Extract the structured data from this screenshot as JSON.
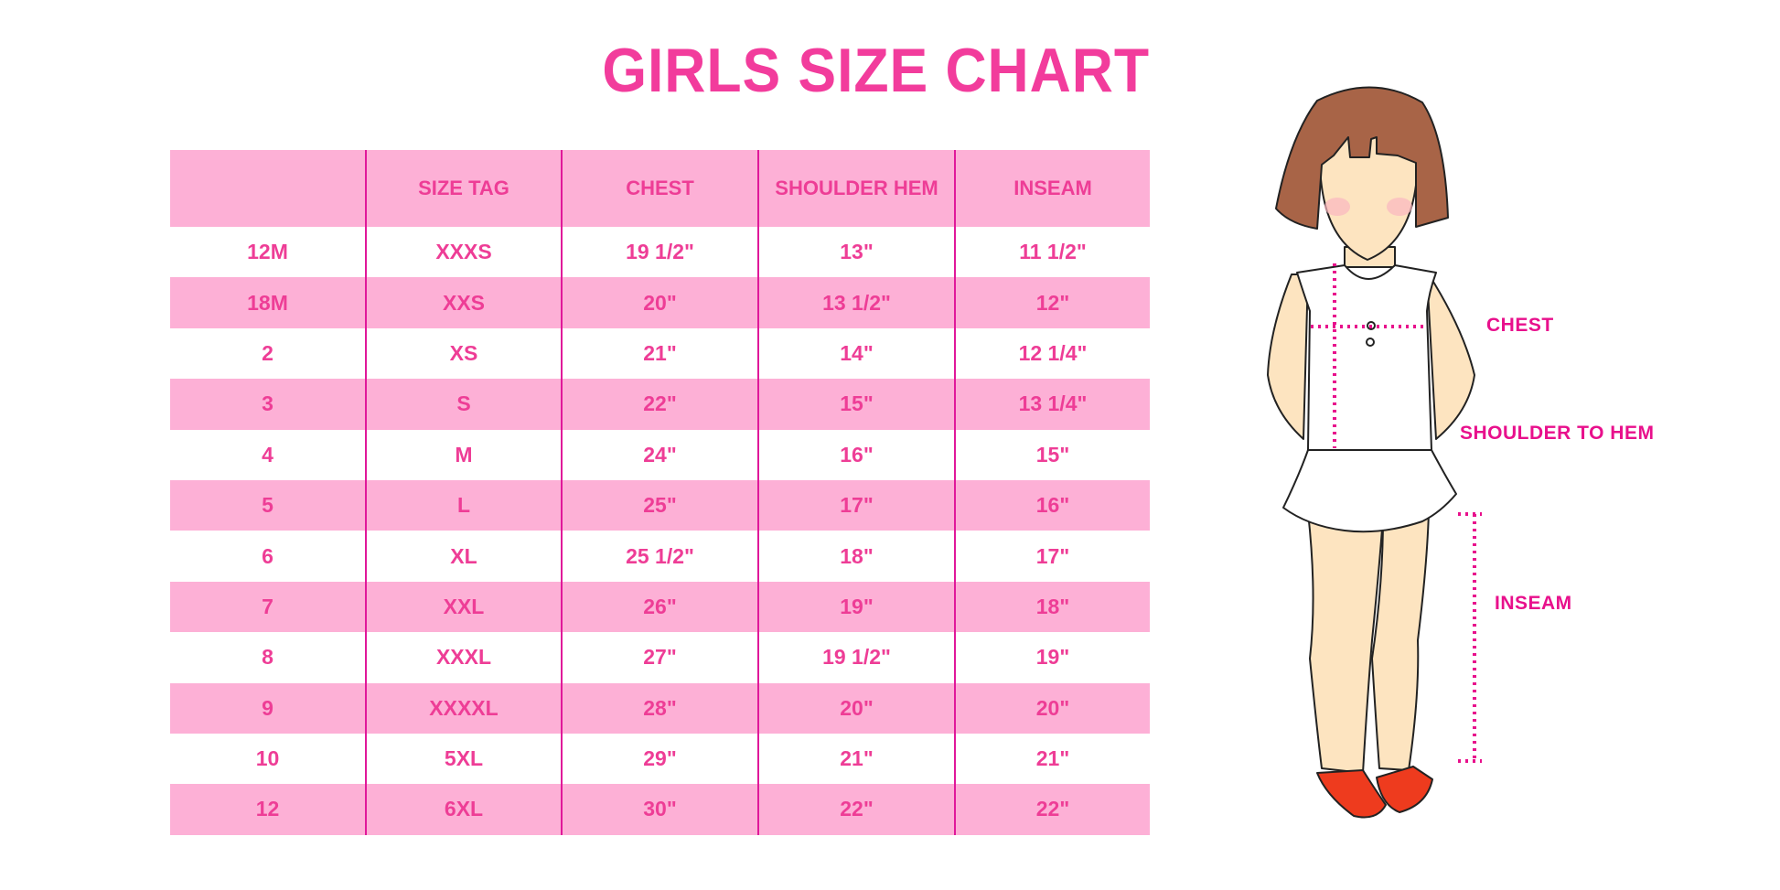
{
  "title": "GIRLS SIZE CHART",
  "table": {
    "headers": [
      "",
      "SIZE TAG",
      "CHEST",
      "SHOULDER HEM",
      "INSEAM"
    ],
    "rows": [
      [
        "12M",
        "XXXS",
        "19 1/2\"",
        "13\"",
        "11 1/2\""
      ],
      [
        "18M",
        "XXS",
        "20\"",
        "13 1/2\"",
        "12\""
      ],
      [
        "2",
        "XS",
        "21\"",
        "14\"",
        "12 1/4\""
      ],
      [
        "3",
        "S",
        "22\"",
        "15\"",
        "13 1/4\""
      ],
      [
        "4",
        "M",
        "24\"",
        "16\"",
        "15\""
      ],
      [
        "5",
        "L",
        "25\"",
        "17\"",
        "16\""
      ],
      [
        "6",
        "XL",
        "25 1/2\"",
        "18\"",
        "17\""
      ],
      [
        "7",
        "XXL",
        "26\"",
        "19\"",
        "18\""
      ],
      [
        "8",
        "XXXL",
        "27\"",
        "19 1/2\"",
        "19\""
      ],
      [
        "9",
        "XXXXL",
        "28\"",
        "20\"",
        "20\""
      ],
      [
        "10",
        "5XL",
        "29\"",
        "21\"",
        "21\""
      ],
      [
        "12",
        "6XL",
        "30\"",
        "22\"",
        "22\""
      ]
    ]
  },
  "figure": {
    "labels": {
      "chest": "CHEST",
      "shoulder": "SHOULDER TO HEM",
      "inseam": "INSEAM"
    }
  },
  "colors": {
    "accent": "#ee3d96",
    "header_bg": "#fdb0d6",
    "divider": "#e0189a",
    "measure": "#e8108c"
  }
}
